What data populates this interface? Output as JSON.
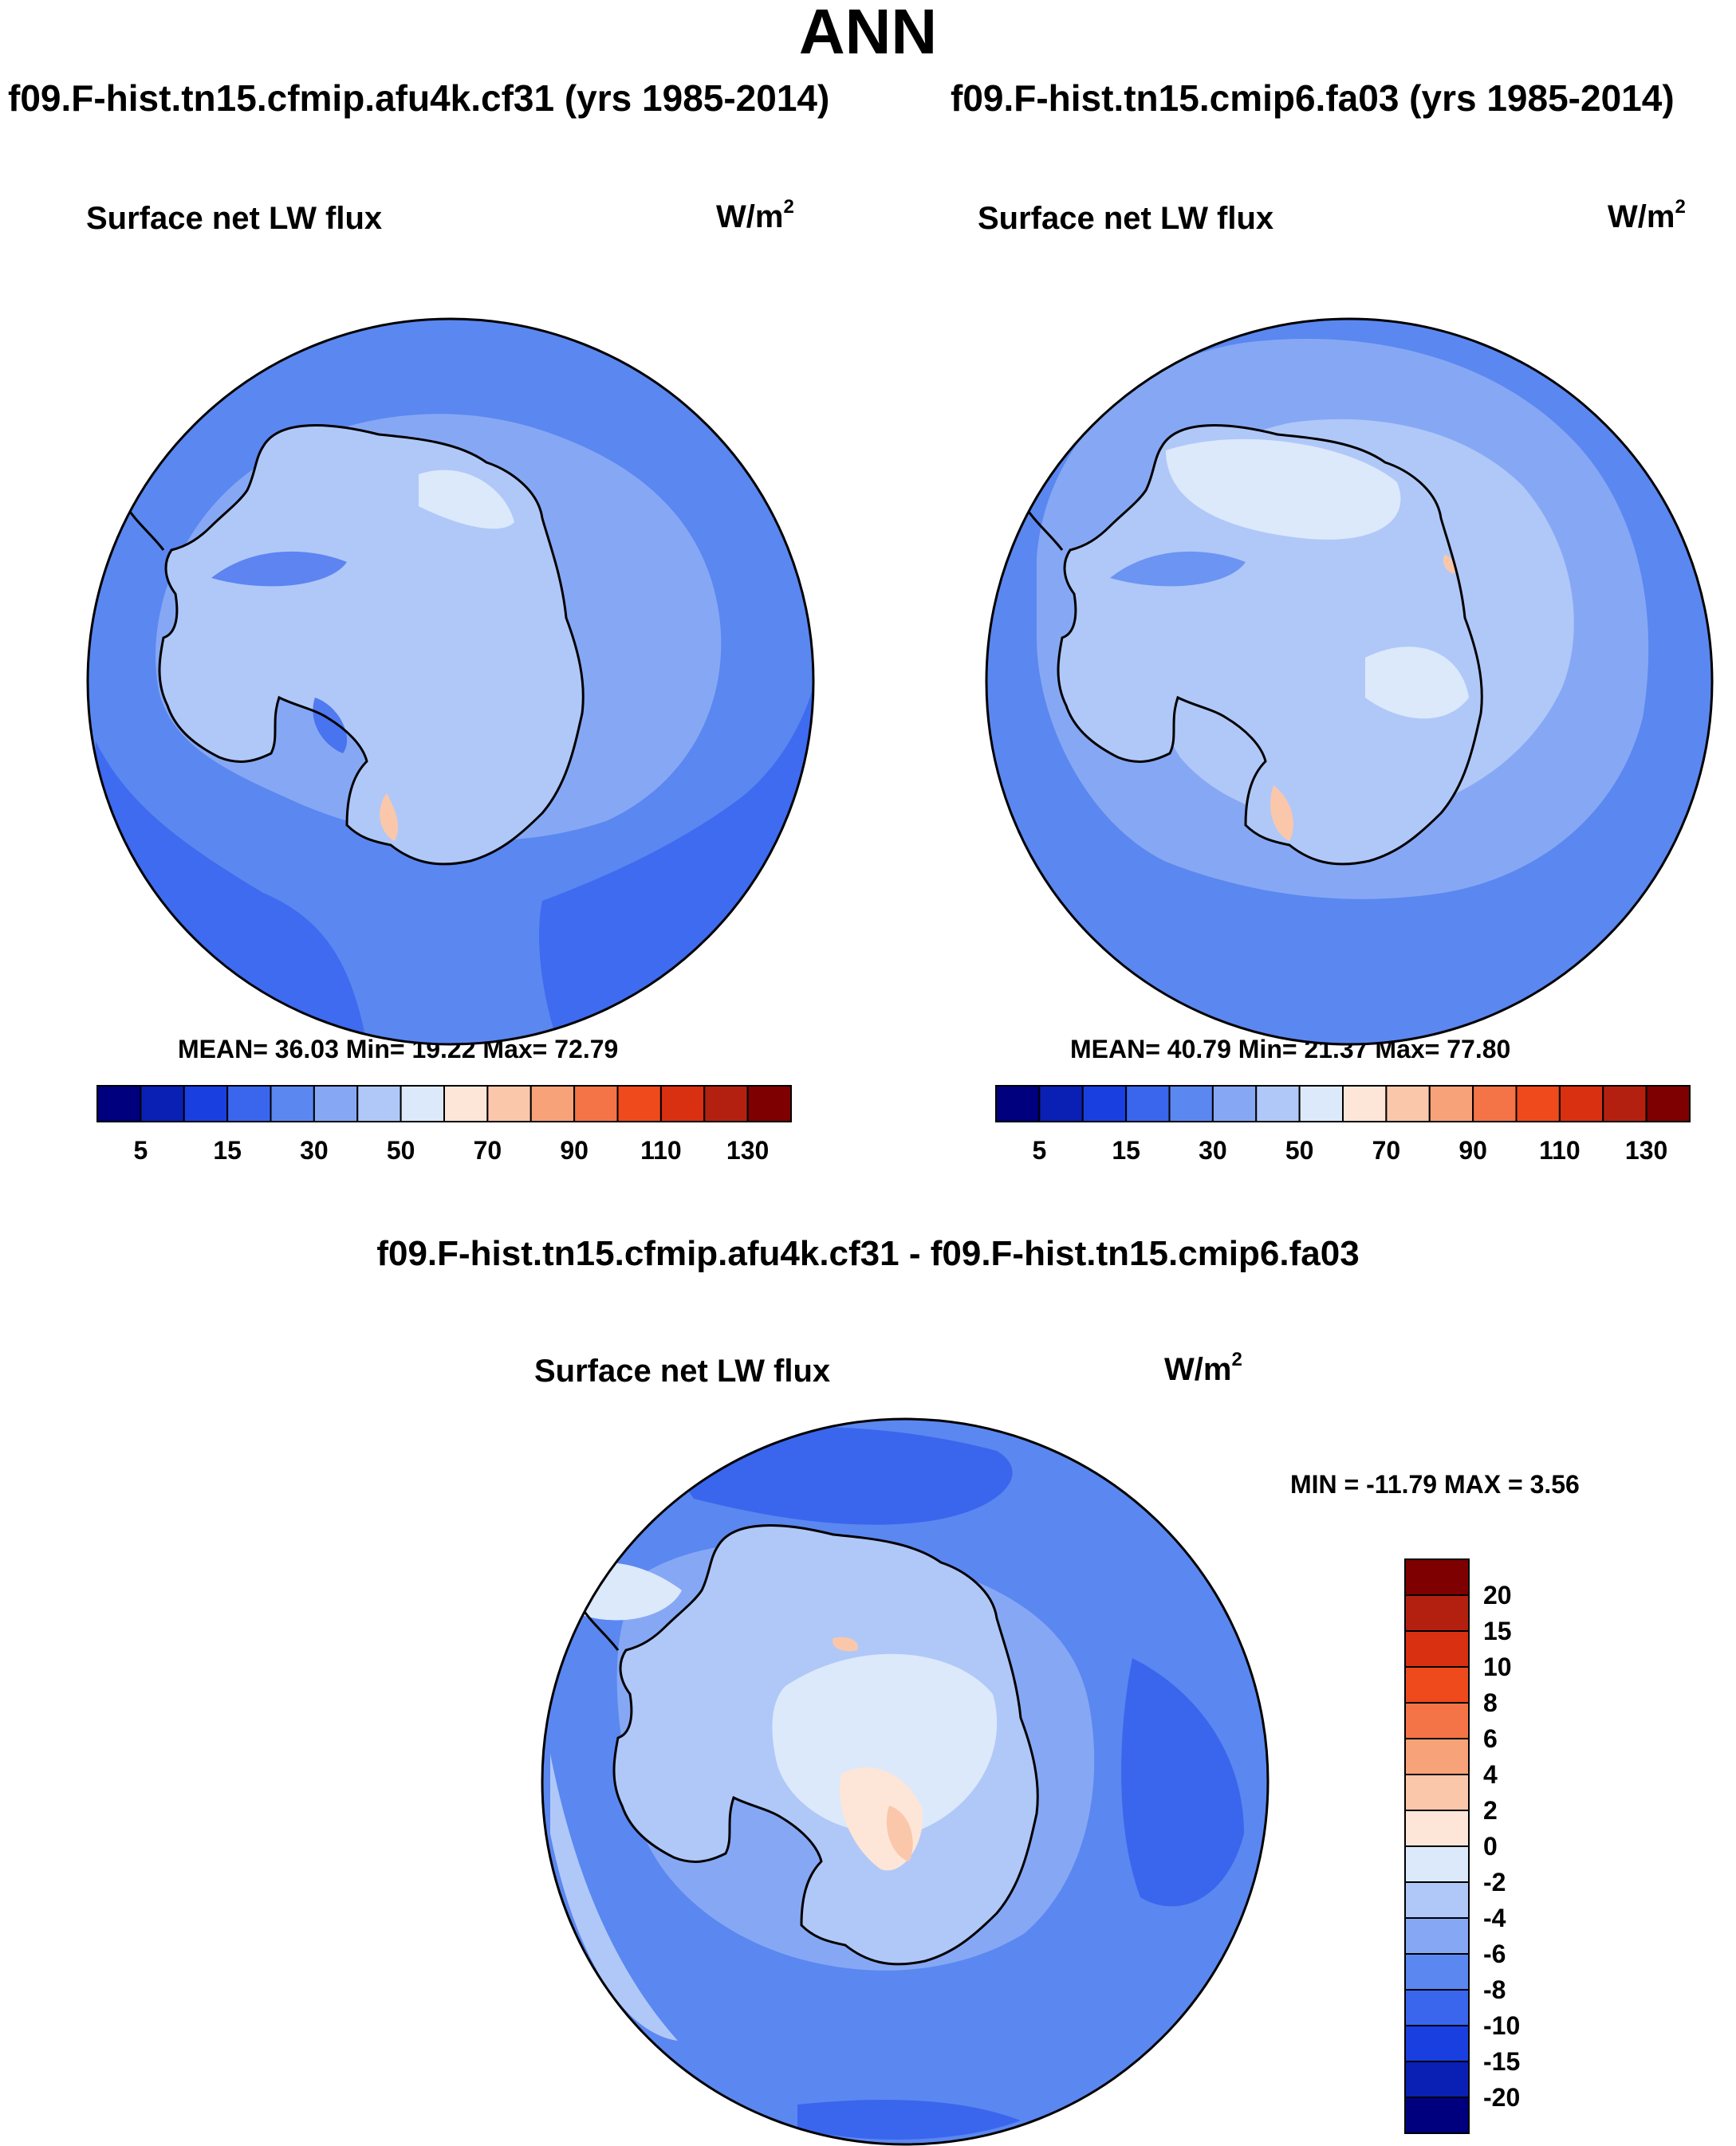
{
  "title": "ANN",
  "panels": [
    {
      "case": "f09.F-hist.tn15.cfmip.afu4k.cf31 (yrs 1985-2014)",
      "variable": "Surface net LW flux",
      "units": "W/m",
      "units_sup": "2",
      "stats": "MEAN=  36.03  Min=  19.22  Max=  72.79"
    },
    {
      "case": "f09.F-hist.tn15.cmip6.fa03 (yrs 1985-2014)",
      "variable": "Surface net LW flux",
      "units": "W/m",
      "units_sup": "2",
      "stats": "MEAN=  40.79  Min=  21.37  Max=  77.80"
    }
  ],
  "diff_panel": {
    "title": "f09.F-hist.tn15.cfmip.afu4k.cf31 - f09.F-hist.tn15.cmip6.fa03",
    "variable": "Surface net LW flux",
    "units": "W/m",
    "units_sup": "2",
    "stats": "MIN = -11.79 MAX =   3.56"
  },
  "colorbar_abs": {
    "colors": [
      "#00007f",
      "#0a1fb4",
      "#1a3fe0",
      "#3a66ee",
      "#5b87f0",
      "#86a8f4",
      "#b0c8f8",
      "#dce9fb",
      "#fde6d8",
      "#fbc7aa",
      "#f8a27a",
      "#f47447",
      "#ef4a1c",
      "#d83010",
      "#b32010",
      "#7f0000"
    ],
    "labels": [
      "5",
      "15",
      "30",
      "50",
      "70",
      "90",
      "110",
      "130"
    ]
  },
  "colorbar_diff": {
    "colors": [
      "#00007f",
      "#0a1fb4",
      "#1a3fe0",
      "#3a66ee",
      "#5b87f0",
      "#86a8f4",
      "#b0c8f8",
      "#dce9fb",
      "#fde6d8",
      "#fbc7aa",
      "#f8a27a",
      "#f47447",
      "#ef4a1c",
      "#d83010",
      "#b32010",
      "#7f0000"
    ],
    "labels": [
      "-20",
      "-15",
      "-10",
      "-8",
      "-6",
      "-4",
      "-2",
      "0",
      "2",
      "4",
      "6",
      "8",
      "10",
      "15",
      "20"
    ]
  },
  "map_colors": {
    "ocean_deep": "#3a66ee",
    "ocean": "#5b87f0",
    "mid": "#86a8f4",
    "light": "#b0c8f8",
    "pale": "#dce9fb",
    "warm": "#fde6d8",
    "warm2": "#fbc7aa"
  }
}
